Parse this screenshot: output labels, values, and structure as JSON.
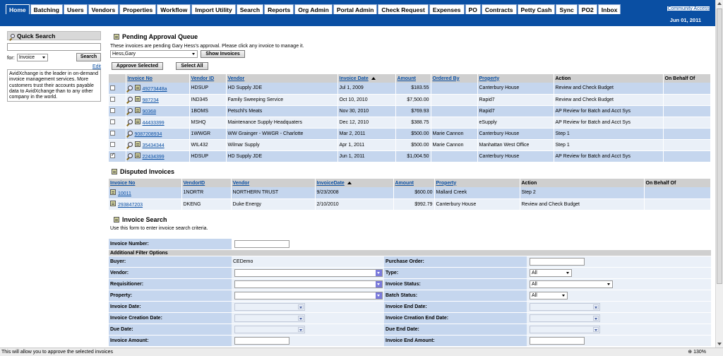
{
  "nav": {
    "tabs": [
      "Home",
      "Batching",
      "Users",
      "Vendors",
      "Properties",
      "Workflow",
      "Import Utility",
      "Search",
      "Reports",
      "Org Admin",
      "Portal Admin",
      "Check Request",
      "Expenses",
      "PO",
      "Contracts",
      "Petty Cash",
      "Sync",
      "PO2",
      "Inbox"
    ],
    "active": "Home",
    "community_link": "Community Access",
    "date": "Jun 01, 2011"
  },
  "quick_search": {
    "title": "Quick Search",
    "input_value": "",
    "for_label": "for:",
    "for_value": "Invoice",
    "search_button": "Search",
    "edit_link": "Edit",
    "blurb": "AvidXchange is the leader in on-demand invoice management services. More customers trust their accounts payable data to AvidXchange than to any other company in the world."
  },
  "pending": {
    "title": "Pending Approval Queue",
    "description": "These invoices are pending Gary Hess's approval. Please click any invoice to manage it.",
    "user_select": "Hess,Gary",
    "show_button": "Show Invoices",
    "approve_button": "Approve Selected",
    "select_all_button": "Select All",
    "columns": [
      "Invoice No",
      "Vendor ID",
      "Vendor",
      "Invoice Date",
      "Amount",
      "Ordered By",
      "Property",
      "Action",
      "On Behalf Of"
    ],
    "rows": [
      {
        "checked": false,
        "invoice": "49273448a",
        "vendor_id": "HDSUP",
        "vendor": "HD Supply JDE",
        "date": "Jul 1, 2009",
        "amount": "$183.55",
        "ordered_by": "",
        "property": "Canterbury House",
        "action": "Review and Check Budget",
        "behalf": ""
      },
      {
        "checked": false,
        "invoice": "987234",
        "vendor_id": "IND345",
        "vendor": "Family Sweeping Service",
        "date": "Oct 10, 2010",
        "amount": "$7,500.00",
        "ordered_by": "",
        "property": "Rapid7",
        "action": "Review and Check Budget",
        "behalf": ""
      },
      {
        "checked": false,
        "invoice": "90368",
        "vendor_id": "1BOMS",
        "vendor": "Petschl's Meats",
        "date": "Nov 30, 2010",
        "amount": "$769.93",
        "ordered_by": "",
        "property": "Rapid7",
        "action": "AP Review for Batch and Acct Sys",
        "behalf": ""
      },
      {
        "checked": false,
        "invoice": "44433399",
        "vendor_id": "MSHQ",
        "vendor": "Maintenance Supply Headquaters",
        "date": "Dec 12, 2010",
        "amount": "$388.75",
        "ordered_by": "",
        "property": "eSupply",
        "action": "AP Review for Batch and Acct Sys",
        "behalf": ""
      },
      {
        "checked": false,
        "invoice": "9087208934",
        "vendor_id": "1WWGR",
        "vendor": "WW Grainger - WWGR - Charlotte",
        "date": "Mar 2, 2011",
        "amount": "$500.00",
        "ordered_by": "Marie Cannon",
        "property": "Canterbury House",
        "action": "Step 1",
        "behalf": ""
      },
      {
        "checked": false,
        "invoice": "35434344",
        "vendor_id": "WIL432",
        "vendor": "Wilmar Supply",
        "date": "Apr 1, 2011",
        "amount": "$500.00",
        "ordered_by": "Marie Cannon",
        "property": "Manhattan West Office",
        "action": "Step 1",
        "behalf": ""
      },
      {
        "checked": true,
        "invoice": "22434399",
        "vendor_id": "HDSUP",
        "vendor": "HD Supply JDE",
        "date": "Jun 1, 2011",
        "amount": "$1,004.50",
        "ordered_by": "",
        "property": "Canterbury House",
        "action": "AP Review for Batch and Acct Sys",
        "behalf": ""
      }
    ]
  },
  "disputed": {
    "title": "Disputed Invoices",
    "columns": [
      "Invoice No",
      "VendorID",
      "Vendor",
      "InvoiceDate",
      "Amount",
      "Property",
      "Action",
      "On Behalf Of"
    ],
    "rows": [
      {
        "invoice": "10011",
        "vendor_id": "1NORTR",
        "vendor": "NORTHERN TRUST",
        "date": "9/23/2008",
        "amount": "$600.00",
        "property": "Mallard Creek",
        "action": "Step 2",
        "behalf": ""
      },
      {
        "invoice": "293847203",
        "vendor_id": "DKENG",
        "vendor": "Duke Energy",
        "date": "2/10/2010",
        "amount": "$992.79",
        "property": "Canterbury House",
        "action": "Review and Check Budget",
        "behalf": ""
      }
    ]
  },
  "invoice_search": {
    "title": "Invoice Search",
    "description": "Use this form to enter invoice search criteria.",
    "invoice_number_label": "Invoice Number:",
    "additional_label": "Additional Filter Options",
    "buyer_label": "Buyer:",
    "buyer_value": "CEDemo",
    "po_label": "Purchase Order:",
    "vendor_label": "Vendor:",
    "type_label": "Type:",
    "type_value": "All",
    "requisitioner_label": "Requisitioner:",
    "invoice_status_label": "Invoice Status:",
    "invoice_status_value": "All",
    "property_label": "Property:",
    "batch_status_label": "Batch Status:",
    "batch_status_value": "All",
    "invoice_date_label": "Invoice Date:",
    "invoice_end_date_label": "Invoice End Date:",
    "creation_date_label": "Invoice Creation Date:",
    "creation_end_date_label": "Invoice Creation End Date:",
    "due_date_label": "Due Date:",
    "due_end_date_label": "Due End Date:",
    "amount_label": "Invoice Amount:",
    "end_amount_label": "Invoice End Amount:"
  },
  "status": {
    "message": "This will allow you to approve the selected invoices",
    "zoom": "130%"
  }
}
